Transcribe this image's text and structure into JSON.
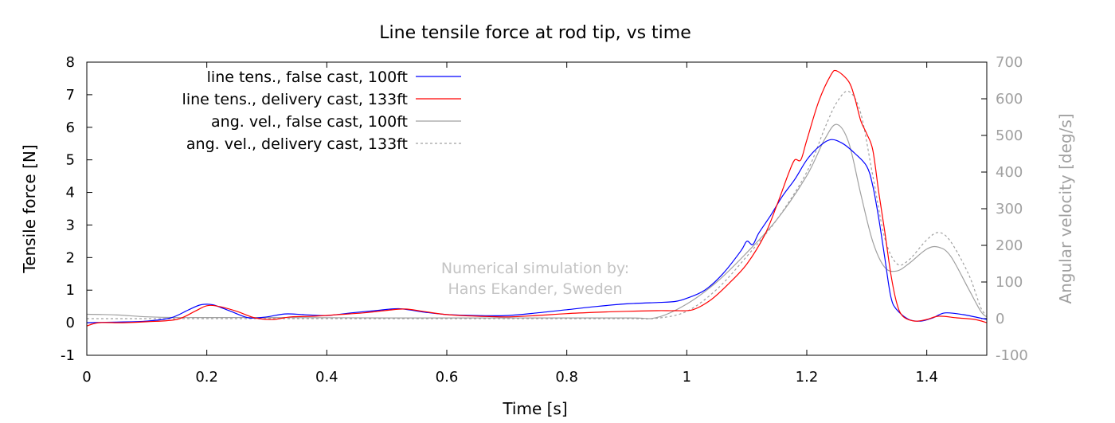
{
  "chart_data": {
    "type": "line",
    "title": "Line tensile force at rod tip, vs time",
    "xlabel": "Time [s]",
    "ylabel": "Tensile force [N]",
    "y2label": "Angular velocity [deg/s]",
    "xlim": [
      0,
      1.5
    ],
    "ylim": [
      -1,
      8
    ],
    "y2lim": [
      -100,
      700
    ],
    "x_ticks": [
      "0",
      "0.2",
      "0.4",
      "0.6",
      "0.8",
      "1",
      "1.2",
      "1.4"
    ],
    "y_ticks": [
      "-1",
      "0",
      "1",
      "2",
      "3",
      "4",
      "5",
      "6",
      "7",
      "8"
    ],
    "y2_ticks": [
      "-100",
      "0",
      "100",
      "200",
      "300",
      "400",
      "500",
      "600",
      "700"
    ],
    "legend_position": "top-left",
    "annotation": [
      "Numerical simulation by:",
      "Hans Ekander, Sweden"
    ],
    "series": [
      {
        "name": "line tens., false cast, 100ft",
        "axis": "y1",
        "color": "#0000ff",
        "dash": "solid",
        "points": [
          [
            0,
            0
          ],
          [
            0.05,
            0.02
          ],
          [
            0.1,
            0.05
          ],
          [
            0.14,
            0.15
          ],
          [
            0.17,
            0.4
          ],
          [
            0.19,
            0.55
          ],
          [
            0.21,
            0.55
          ],
          [
            0.24,
            0.35
          ],
          [
            0.27,
            0.15
          ],
          [
            0.3,
            0.18
          ],
          [
            0.33,
            0.27
          ],
          [
            0.36,
            0.25
          ],
          [
            0.4,
            0.22
          ],
          [
            0.44,
            0.3
          ],
          [
            0.48,
            0.37
          ],
          [
            0.52,
            0.43
          ],
          [
            0.56,
            0.33
          ],
          [
            0.6,
            0.25
          ],
          [
            0.65,
            0.22
          ],
          [
            0.7,
            0.22
          ],
          [
            0.75,
            0.3
          ],
          [
            0.8,
            0.4
          ],
          [
            0.85,
            0.5
          ],
          [
            0.9,
            0.58
          ],
          [
            0.95,
            0.62
          ],
          [
            0.98,
            0.65
          ],
          [
            1.0,
            0.75
          ],
          [
            1.03,
            1.0
          ],
          [
            1.06,
            1.5
          ],
          [
            1.09,
            2.2
          ],
          [
            1.1,
            2.5
          ],
          [
            1.11,
            2.4
          ],
          [
            1.12,
            2.75
          ],
          [
            1.14,
            3.3
          ],
          [
            1.16,
            3.9
          ],
          [
            1.18,
            4.4
          ],
          [
            1.2,
            5.0
          ],
          [
            1.22,
            5.4
          ],
          [
            1.24,
            5.62
          ],
          [
            1.26,
            5.5
          ],
          [
            1.28,
            5.2
          ],
          [
            1.3,
            4.8
          ],
          [
            1.31,
            4.2
          ],
          [
            1.32,
            3.2
          ],
          [
            1.33,
            2.0
          ],
          [
            1.34,
            0.8
          ],
          [
            1.35,
            0.4
          ],
          [
            1.37,
            0.1
          ],
          [
            1.39,
            0.05
          ],
          [
            1.41,
            0.15
          ],
          [
            1.43,
            0.3
          ],
          [
            1.46,
            0.25
          ],
          [
            1.5,
            0.1
          ]
        ]
      },
      {
        "name": "line tens., delivery cast, 133ft",
        "axis": "y1",
        "color": "#ff0000",
        "dash": "solid",
        "points": [
          [
            0,
            -0.1
          ],
          [
            0.02,
            0.0
          ],
          [
            0.06,
            0.0
          ],
          [
            0.1,
            0.03
          ],
          [
            0.15,
            0.1
          ],
          [
            0.18,
            0.35
          ],
          [
            0.2,
            0.52
          ],
          [
            0.22,
            0.5
          ],
          [
            0.25,
            0.35
          ],
          [
            0.28,
            0.15
          ],
          [
            0.31,
            0.1
          ],
          [
            0.34,
            0.18
          ],
          [
            0.38,
            0.2
          ],
          [
            0.42,
            0.25
          ],
          [
            0.46,
            0.3
          ],
          [
            0.5,
            0.38
          ],
          [
            0.53,
            0.42
          ],
          [
            0.56,
            0.35
          ],
          [
            0.6,
            0.25
          ],
          [
            0.65,
            0.2
          ],
          [
            0.7,
            0.18
          ],
          [
            0.75,
            0.22
          ],
          [
            0.8,
            0.28
          ],
          [
            0.85,
            0.32
          ],
          [
            0.9,
            0.35
          ],
          [
            0.95,
            0.37
          ],
          [
            0.98,
            0.37
          ],
          [
            1.01,
            0.4
          ],
          [
            1.04,
            0.7
          ],
          [
            1.07,
            1.2
          ],
          [
            1.1,
            1.8
          ],
          [
            1.13,
            2.7
          ],
          [
            1.15,
            3.6
          ],
          [
            1.17,
            4.6
          ],
          [
            1.18,
            5.0
          ],
          [
            1.19,
            5.0
          ],
          [
            1.2,
            5.6
          ],
          [
            1.22,
            6.8
          ],
          [
            1.24,
            7.6
          ],
          [
            1.25,
            7.73
          ],
          [
            1.27,
            7.4
          ],
          [
            1.28,
            6.9
          ],
          [
            1.29,
            6.2
          ],
          [
            1.3,
            5.8
          ],
          [
            1.31,
            5.3
          ],
          [
            1.32,
            4.0
          ],
          [
            1.33,
            2.8
          ],
          [
            1.34,
            1.5
          ],
          [
            1.35,
            0.6
          ],
          [
            1.36,
            0.2
          ],
          [
            1.38,
            0.05
          ],
          [
            1.4,
            0.1
          ],
          [
            1.42,
            0.2
          ],
          [
            1.45,
            0.15
          ],
          [
            1.48,
            0.1
          ],
          [
            1.5,
            0.0
          ]
        ]
      },
      {
        "name": "ang. vel., false cast, 100ft",
        "axis": "y2",
        "color": "#a0a0a0",
        "dash": "solid",
        "points": [
          [
            0,
            12
          ],
          [
            0.05,
            10
          ],
          [
            0.1,
            5
          ],
          [
            0.15,
            3
          ],
          [
            0.2,
            3
          ],
          [
            0.3,
            3
          ],
          [
            0.5,
            2
          ],
          [
            0.7,
            2
          ],
          [
            0.9,
            2
          ],
          [
            0.95,
            3
          ],
          [
            1.0,
            40
          ],
          [
            1.05,
            100
          ],
          [
            1.1,
            180
          ],
          [
            1.15,
            270
          ],
          [
            1.2,
            390
          ],
          [
            1.23,
            490
          ],
          [
            1.25,
            530
          ],
          [
            1.27,
            480
          ],
          [
            1.29,
            340
          ],
          [
            1.31,
            210
          ],
          [
            1.33,
            140
          ],
          [
            1.35,
            130
          ],
          [
            1.37,
            150
          ],
          [
            1.4,
            190
          ],
          [
            1.42,
            195
          ],
          [
            1.44,
            170
          ],
          [
            1.47,
            80
          ],
          [
            1.49,
            20
          ],
          [
            1.5,
            5
          ]
        ]
      },
      {
        "name": "ang. vel., delivery cast, 133ft",
        "axis": "y2",
        "color": "#a0a0a0",
        "dash": "dashed",
        "points": [
          [
            0,
            0
          ],
          [
            0.2,
            0
          ],
          [
            0.5,
            0
          ],
          [
            0.8,
            0
          ],
          [
            0.9,
            0
          ],
          [
            0.95,
            1
          ],
          [
            1.0,
            20
          ],
          [
            1.05,
            80
          ],
          [
            1.1,
            170
          ],
          [
            1.15,
            270
          ],
          [
            1.2,
            400
          ],
          [
            1.23,
            520
          ],
          [
            1.25,
            590
          ],
          [
            1.27,
            620
          ],
          [
            1.29,
            560
          ],
          [
            1.31,
            390
          ],
          [
            1.33,
            220
          ],
          [
            1.35,
            150
          ],
          [
            1.37,
            160
          ],
          [
            1.4,
            215
          ],
          [
            1.42,
            235
          ],
          [
            1.44,
            210
          ],
          [
            1.47,
            120
          ],
          [
            1.49,
            30
          ],
          [
            1.5,
            10
          ]
        ]
      }
    ]
  }
}
